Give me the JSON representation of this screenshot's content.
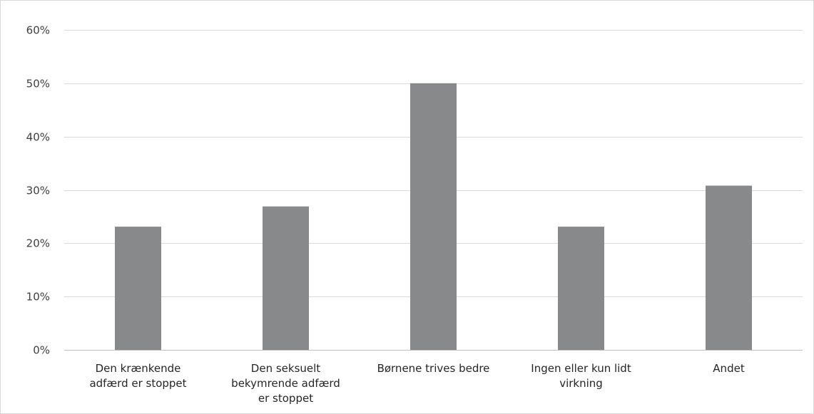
{
  "chart_data": {
    "type": "bar",
    "title": "",
    "xlabel": "",
    "ylabel": "",
    "categories": [
      [
        "Den krænkende",
        "adfærd er stoppet"
      ],
      [
        "Den seksuelt",
        "bekymrende adfærd",
        "er stoppet"
      ],
      [
        "Børnene trives bedre"
      ],
      [
        "Ingen eller kun lidt",
        "virkning"
      ],
      [
        "Andet"
      ]
    ],
    "values": [
      0.231,
      0.269,
      0.5,
      0.231,
      0.308
    ],
    "ylim": [
      0,
      0.6
    ],
    "yticks": [
      0,
      0.1,
      0.2,
      0.3,
      0.4,
      0.5,
      0.6
    ],
    "ytick_labels": [
      "0%",
      "10%",
      "20%",
      "30%",
      "40%",
      "50%",
      "60%"
    ],
    "grid": true,
    "legend": "none",
    "colors": {
      "bar": "#87898b",
      "grid": "#d9d9d9",
      "axis": "#bfbfbf"
    }
  }
}
